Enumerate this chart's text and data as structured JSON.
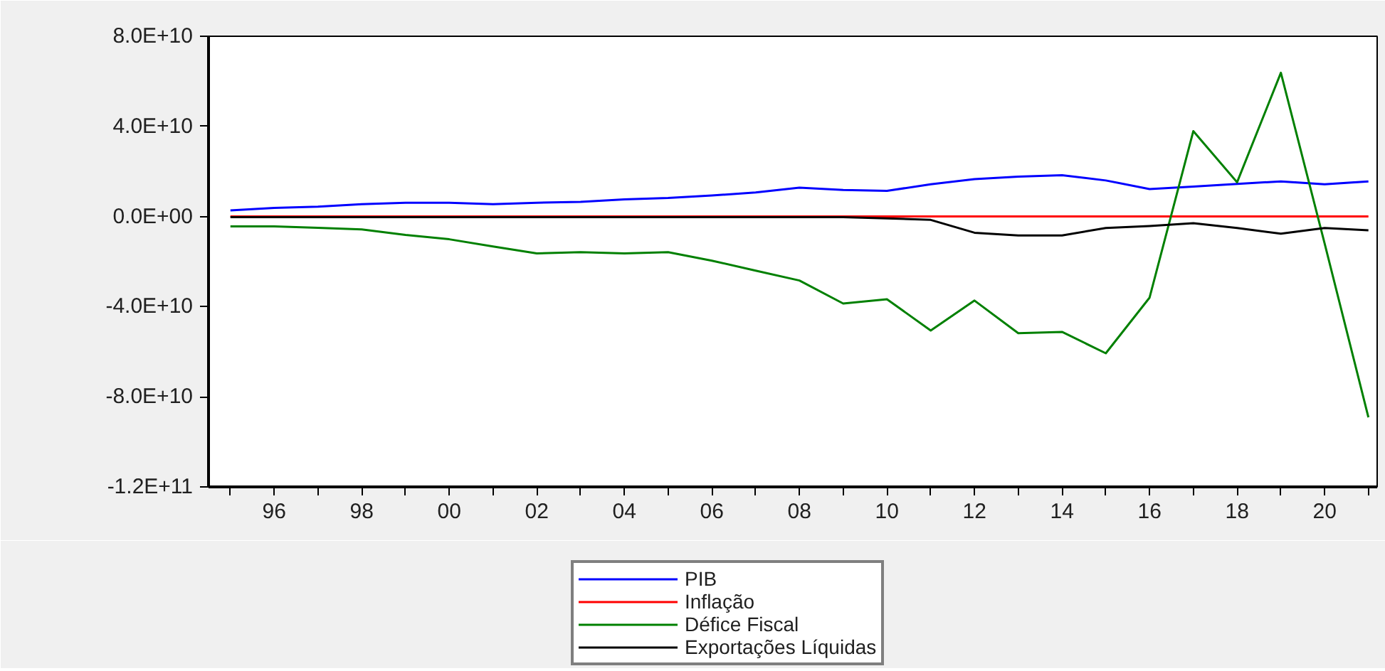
{
  "chart_data": {
    "type": "line",
    "x": [
      1995,
      1996,
      1997,
      1998,
      1999,
      2000,
      2001,
      2002,
      2003,
      2004,
      2005,
      2006,
      2007,
      2008,
      2009,
      2010,
      2011,
      2012,
      2013,
      2014,
      2015,
      2016,
      2017,
      2018,
      2019,
      2020,
      2021
    ],
    "series": [
      {
        "name": "PIB",
        "color": "#0000ff",
        "values": [
          2700000000.0,
          3800000000.0,
          4400000000.0,
          5500000000.0,
          6100000000.0,
          6100000000.0,
          5500000000.0,
          6100000000.0,
          6500000000.0,
          7600000000.0,
          8200000000.0,
          9300000000.0,
          10700000000.0,
          12800000000.0,
          11800000000.0,
          11400000000.0,
          14300000000.0,
          16600000000.0,
          17700000000.0,
          18300000000.0,
          16000000000.0,
          12200000000.0,
          13300000000.0,
          14500000000.0,
          15600000000.0,
          14300000000.0,
          15600000000.0
        ]
      },
      {
        "name": "Inflação",
        "color": "#ff0000",
        "values": [
          0,
          0,
          0,
          0,
          0,
          0,
          0,
          0,
          0,
          0,
          0,
          0,
          0,
          0,
          0,
          0,
          0,
          0,
          0,
          0,
          0,
          0,
          0,
          0,
          0,
          0,
          0
        ]
      },
      {
        "name": "Défice Fiscal",
        "color": "#008000",
        "values": [
          -4400000000.0,
          -4400000000.0,
          -5000000000.0,
          -5700000000.0,
          -8200000000.0,
          -10100000000.0,
          -13300000000.0,
          -16400000000.0,
          -15800000000.0,
          -16400000000.0,
          -15800000000.0,
          -19600000000.0,
          -24000000000.0,
          -28400000000.0,
          -38600000000.0,
          -36700000000.0,
          -50600000000.0,
          -37300000000.0,
          -51800000000.0,
          -51200000000.0,
          -60700000000.0,
          -36000000000.0,
          37900000000.0,
          15200000000.0,
          63800000000.0,
          -12000000000.0,
          -89100000000.0
        ]
      },
      {
        "name": "Exportações Líquidas",
        "color": "#000000",
        "values": [
          -300000000.0,
          -300000000.0,
          -300000000.0,
          -300000000.0,
          -300000000.0,
          -300000000.0,
          -300000000.0,
          -300000000.0,
          -300000000.0,
          -300000000.0,
          -300000000.0,
          -300000000.0,
          -300000000.0,
          -300000000.0,
          -300000000.0,
          -800000000.0,
          -1500000000.0,
          -7200000000.0,
          -8400000000.0,
          -8400000000.0,
          -5100000000.0,
          -4200000000.0,
          -3000000000.0,
          -5100000000.0,
          -7600000000.0,
          -5100000000.0,
          -6100000000.0
        ]
      }
    ],
    "xlim": [
      1994.5,
      2021.2
    ],
    "xticks": [
      {
        "value": 1995,
        "label": null
      },
      {
        "value": 1996,
        "label": "96"
      },
      {
        "value": 1997,
        "label": null
      },
      {
        "value": 1998,
        "label": "98"
      },
      {
        "value": 1999,
        "label": null
      },
      {
        "value": 2000,
        "label": "00"
      },
      {
        "value": 2001,
        "label": null
      },
      {
        "value": 2002,
        "label": "02"
      },
      {
        "value": 2003,
        "label": null
      },
      {
        "value": 2004,
        "label": "04"
      },
      {
        "value": 2005,
        "label": null
      },
      {
        "value": 2006,
        "label": "06"
      },
      {
        "value": 2007,
        "label": null
      },
      {
        "value": 2008,
        "label": "08"
      },
      {
        "value": 2009,
        "label": null
      },
      {
        "value": 2010,
        "label": "10"
      },
      {
        "value": 2011,
        "label": null
      },
      {
        "value": 2012,
        "label": "12"
      },
      {
        "value": 2013,
        "label": null
      },
      {
        "value": 2014,
        "label": "14"
      },
      {
        "value": 2015,
        "label": null
      },
      {
        "value": 2016,
        "label": "16"
      },
      {
        "value": 2017,
        "label": null
      },
      {
        "value": 2018,
        "label": "18"
      },
      {
        "value": 2019,
        "label": null
      },
      {
        "value": 2020,
        "label": "20"
      },
      {
        "value": 2021,
        "label": null
      }
    ],
    "ylim": [
      -120000000000.0,
      80000000000.0
    ],
    "yticks": [
      {
        "value": 80000000000.0,
        "label": "8.0E+10"
      },
      {
        "value": 40000000000.0,
        "label": "4.0E+10"
      },
      {
        "value": 0,
        "label": "0.0E+00"
      },
      {
        "value": -40000000000.0,
        "label": "-4.0E+10"
      },
      {
        "value": -80000000000.0,
        "label": "-8.0E+10"
      },
      {
        "value": -120000000000.0,
        "label": "-1.2E+11"
      }
    ],
    "legend": "bottom",
    "grid": false,
    "marker": "none",
    "line_style": "solid"
  }
}
